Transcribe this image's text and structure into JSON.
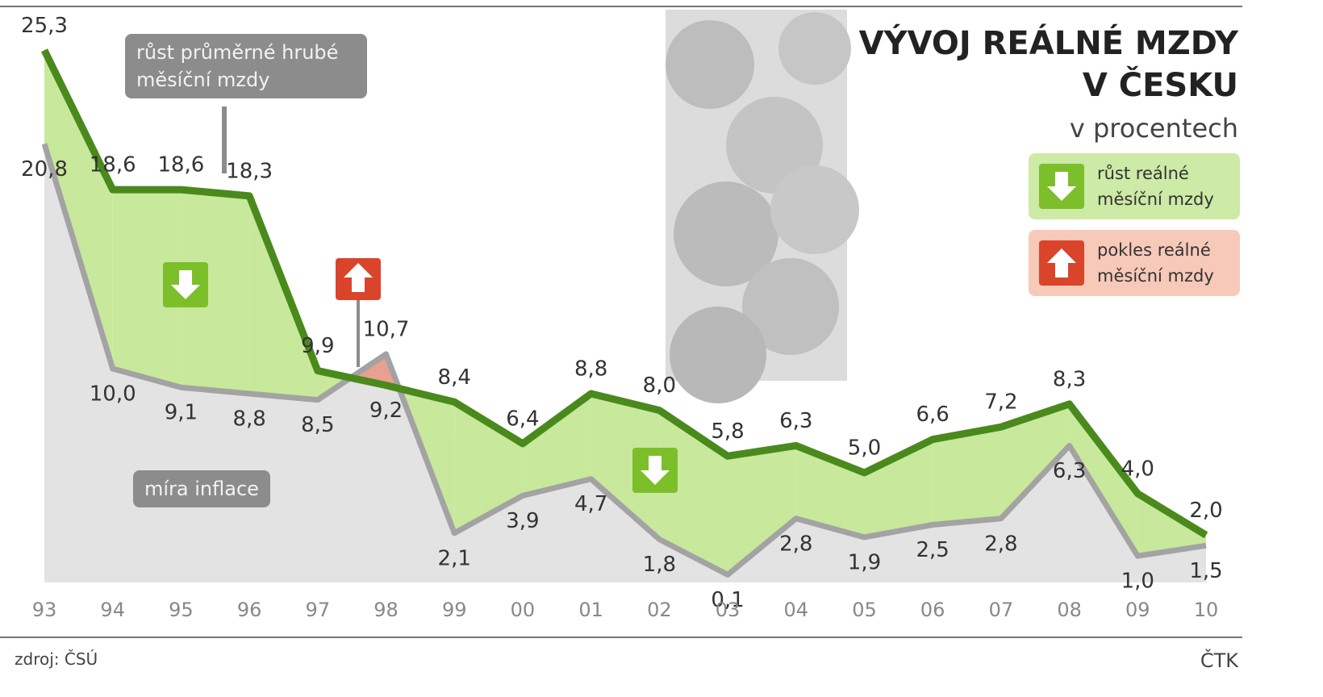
{
  "chart_data": {
    "type": "line",
    "title": "VÝVOJ REÁLNÉ MZDY V ČESKU",
    "subtitle": "v procentech",
    "categories": [
      "93",
      "94",
      "95",
      "96",
      "97",
      "98",
      "99",
      "00",
      "01",
      "02",
      "03",
      "04",
      "05",
      "06",
      "07",
      "08",
      "09",
      "10"
    ],
    "series": [
      {
        "name": "růst průměrné hrubé měsíční mzdy",
        "color": "#4a8a1c",
        "values": [
          25.3,
          18.6,
          18.6,
          18.3,
          9.9,
          9.2,
          8.4,
          6.4,
          8.8,
          8.0,
          5.8,
          6.3,
          5.0,
          6.6,
          7.2,
          8.3,
          4.0,
          2.0
        ],
        "value_labels": [
          "25,3",
          "18,6",
          "18,6",
          "18,3",
          "9,9",
          "9,2",
          "8,4",
          "6,4",
          "8,8",
          "8,0",
          "5,8",
          "6,3",
          "5,0",
          "6,6",
          "7,2",
          "8,3",
          "4,0",
          "2,0"
        ]
      },
      {
        "name": "míra inflace",
        "color": "#a3a3a3",
        "values": [
          20.8,
          10.0,
          9.1,
          8.8,
          8.5,
          10.7,
          2.1,
          3.9,
          4.7,
          1.8,
          0.1,
          2.8,
          1.9,
          2.5,
          2.8,
          6.3,
          1.0,
          1.5
        ],
        "value_labels": [
          "20,8",
          "10,0",
          "9,1",
          "8,8",
          "8,5",
          "10,7",
          "2,1",
          "3,9",
          "4,7",
          "1,8",
          "0,1",
          "2,8",
          "1,9",
          "2,5",
          "2,8",
          "6,3",
          "1,0",
          "1,5"
        ]
      }
    ],
    "fill_legend": [
      {
        "label": "růst reálné měsíční mzdy",
        "color": "#c8e89c"
      },
      {
        "label": "pokles reálné měsíční mzdy",
        "color": "#e8a090"
      }
    ],
    "source": "zdroj: ČSÚ",
    "credit": "ČTK"
  }
}
